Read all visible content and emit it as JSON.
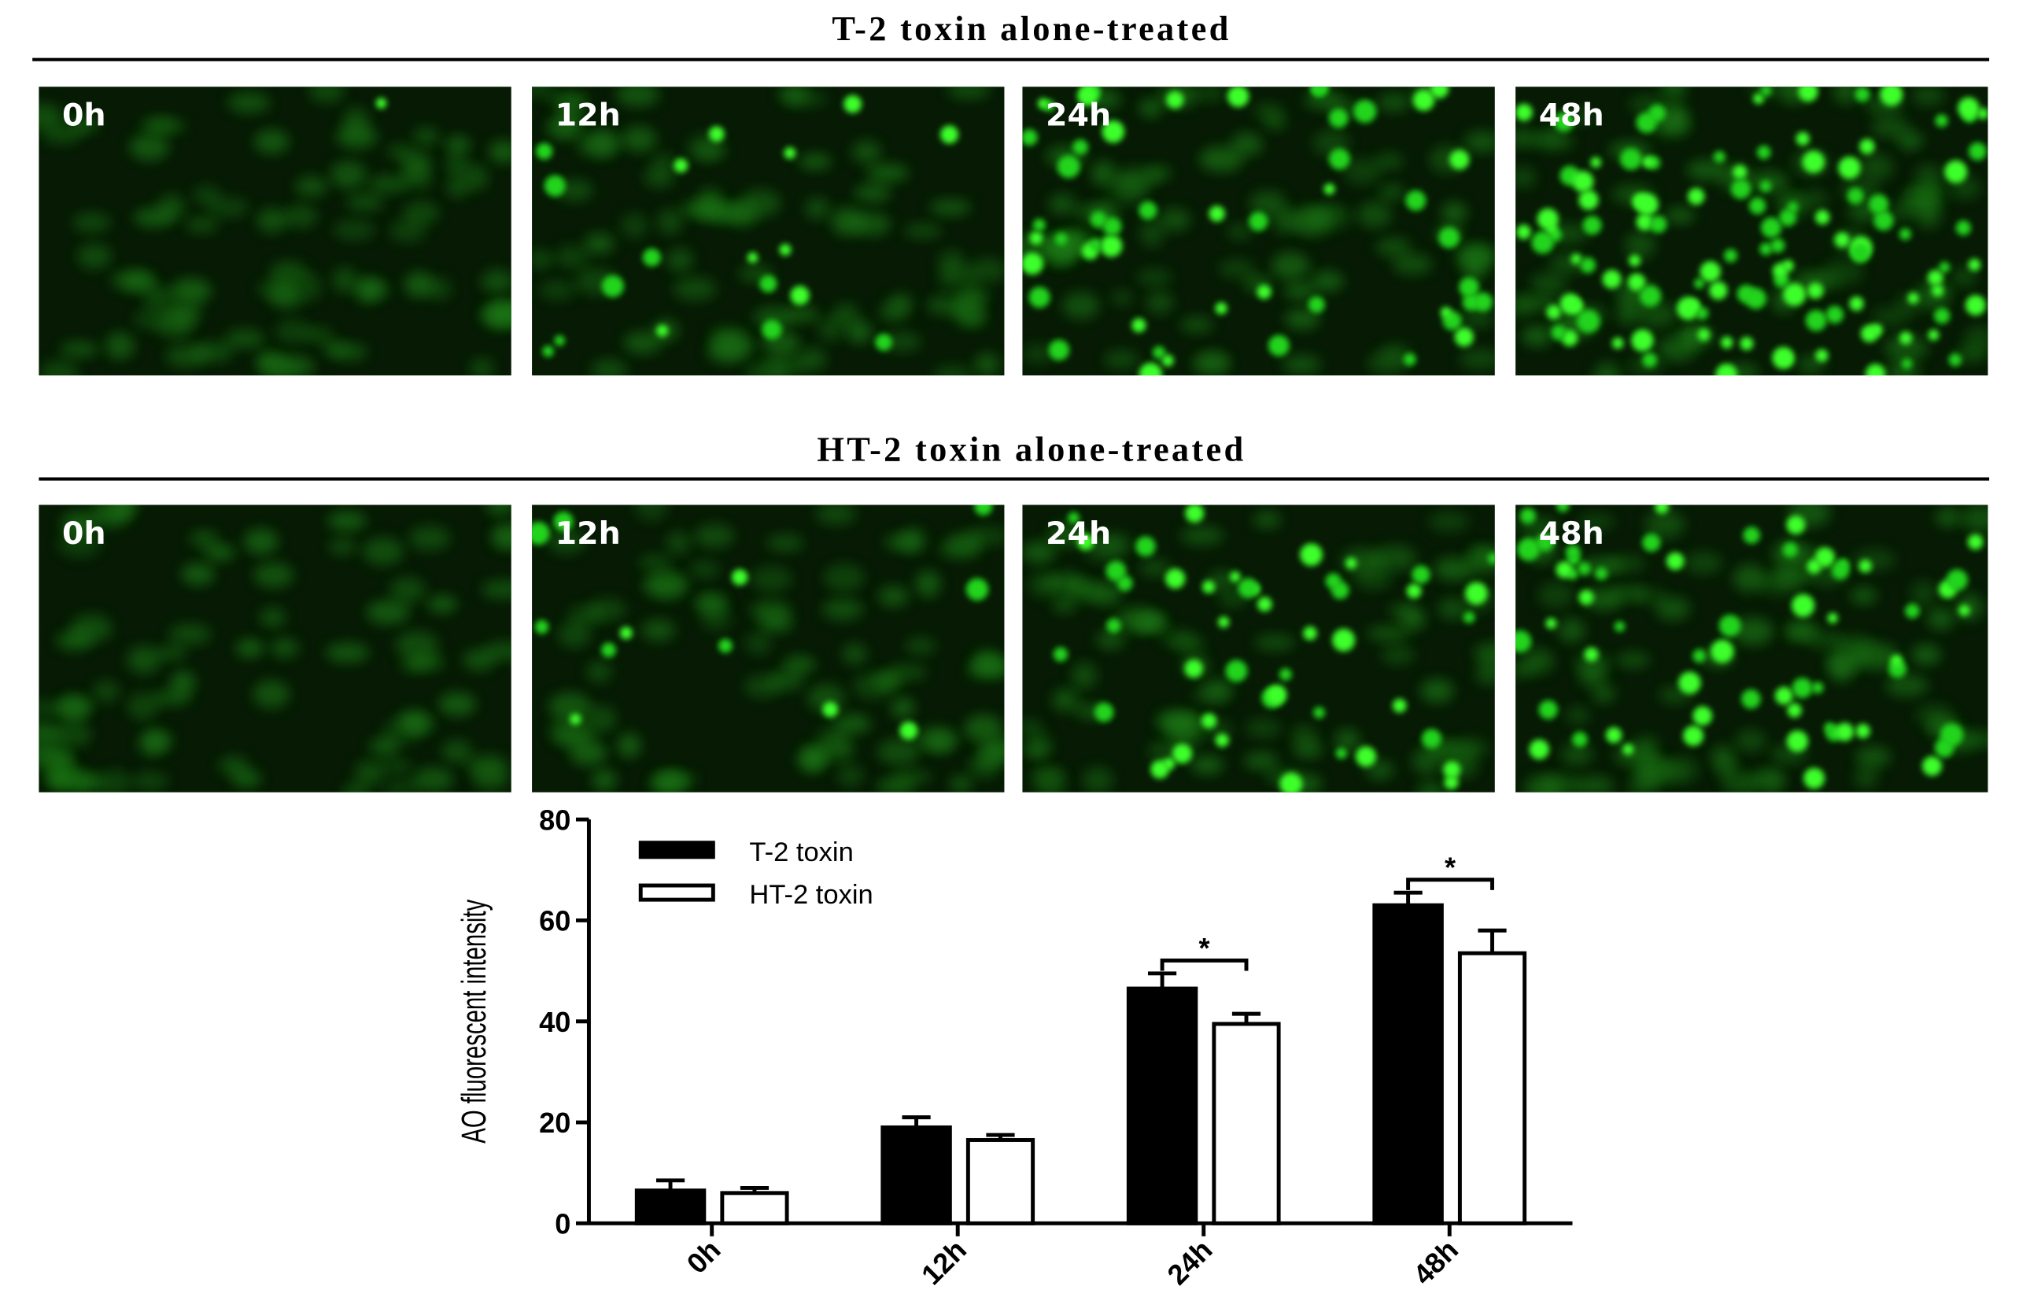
{
  "figure": {
    "rows": [
      {
        "title": "T-2 toxin alone-treated",
        "images": [
          "0h",
          "12h",
          "24h",
          "48h"
        ]
      },
      {
        "title": "HT-2 toxin alone-treated",
        "images": [
          "0h",
          "12h",
          "24h",
          "48h"
        ]
      }
    ]
  },
  "chart_data": {
    "type": "bar",
    "y_label": "AO fluorescent intensity",
    "categories": [
      "0h",
      "12h",
      "24h",
      "48h"
    ],
    "series": [
      {
        "name": "T-2 toxin",
        "color": "#000000",
        "values": [
          6.5,
          19,
          46.5,
          63
        ],
        "errors": [
          2,
          2,
          3,
          2.5
        ]
      },
      {
        "name": "HT-2 toxin",
        "color": "#ffffff",
        "values": [
          6,
          16.5,
          39.5,
          53.5
        ],
        "errors": [
          1,
          1,
          2,
          4.5
        ]
      }
    ],
    "ylim": [
      0,
      80
    ],
    "yticks": [
      0,
      20,
      40,
      60,
      80
    ],
    "grid": false,
    "legend": "upper-left",
    "annotations": [
      {
        "text": "*",
        "category": "24h"
      },
      {
        "text": "*",
        "category": "48h"
      }
    ]
  }
}
